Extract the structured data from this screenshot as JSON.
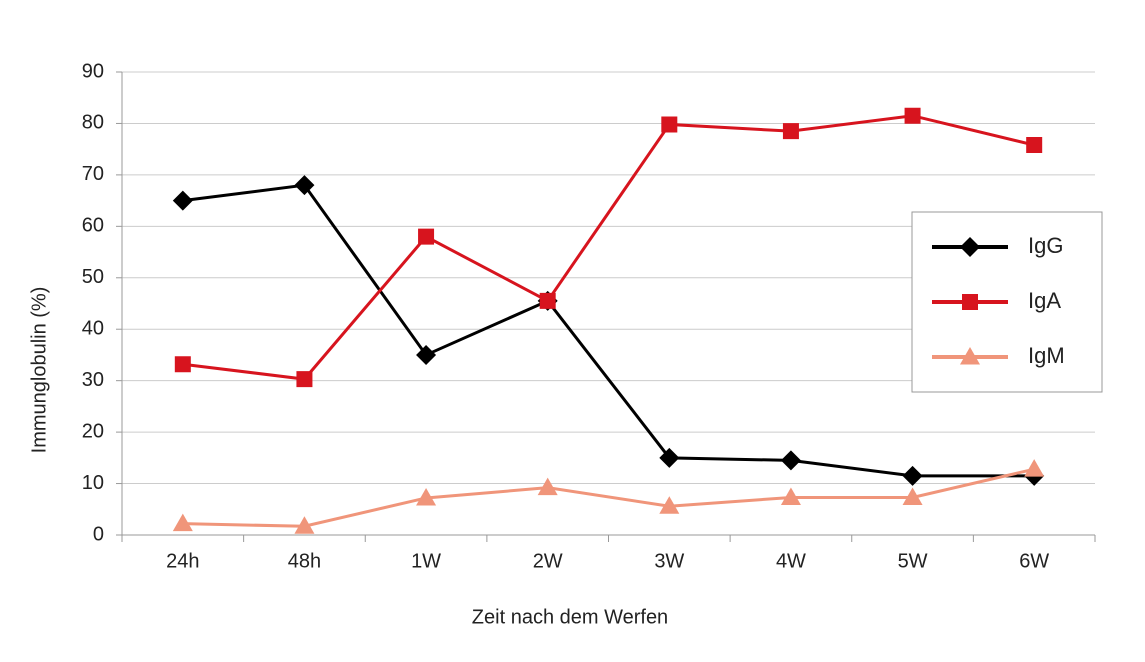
{
  "chart_data": {
    "type": "line",
    "x_label": "Zeit nach dem Werfen",
    "y_label": "Immunglobulin (%)",
    "categories": [
      "24h",
      "48h",
      "1W",
      "2W",
      "3W",
      "4W",
      "5W",
      "6W"
    ],
    "series": [
      {
        "name": "IgG",
        "color": "#000000",
        "marker": "diamond",
        "values": [
          65,
          68,
          35,
          45.5,
          15,
          14.5,
          11.5,
          11.5
        ]
      },
      {
        "name": "IgA",
        "color": "#d7141e",
        "marker": "square",
        "values": [
          33.2,
          30.3,
          58,
          45.5,
          79.8,
          78.5,
          81.5,
          75.8
        ]
      },
      {
        "name": "IgM",
        "color": "#f0957a",
        "marker": "triangle",
        "values": [
          2.2,
          1.7,
          7.2,
          9.2,
          5.6,
          7.3,
          7.3,
          12.8
        ]
      }
    ],
    "ylim": [
      0,
      90
    ],
    "yticks": [
      0,
      10,
      20,
      30,
      40,
      50,
      60,
      70,
      80,
      90
    ],
    "grid": true,
    "legend": "right"
  }
}
